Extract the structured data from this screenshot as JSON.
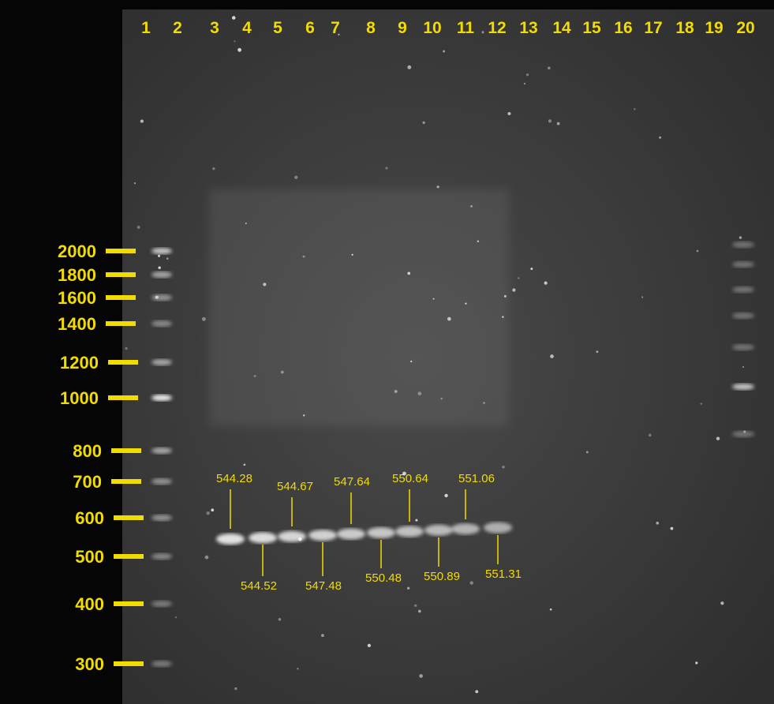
{
  "lanes": [
    "1",
    "2",
    "3",
    "4",
    "5",
    "6",
    "7",
    "8",
    "9",
    "10",
    "11",
    "12",
    "13",
    "14",
    "15",
    "16",
    "17",
    "18",
    "19",
    "20"
  ],
  "ladder": [
    "2000",
    "1800",
    "1600",
    "1400",
    "1200",
    "1000",
    "800",
    "700",
    "600",
    "500",
    "400",
    "300"
  ],
  "band_labels_above": [
    "544.28",
    "544.67",
    "547.64",
    "550.64",
    "551.06"
  ],
  "band_labels_below": [
    "544.52",
    "547.48",
    "550.48",
    "550.89",
    "551.31"
  ]
}
